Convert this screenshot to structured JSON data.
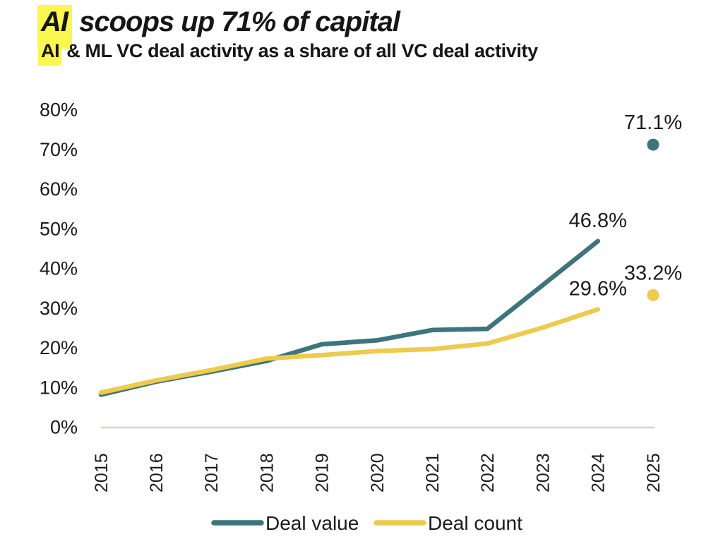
{
  "title": {
    "highlight": "AI",
    "rest": " scoops up 71% of capital"
  },
  "subtitle": {
    "highlight": "AI",
    "rest": " & ML VC deal activity as a share of all VC deal activity"
  },
  "colors": {
    "deal_value": "#3e747b",
    "deal_count": "#eeca4e",
    "title_highlight": "#fbf650",
    "axis_line": "#d8d4cc",
    "text": "#1b1b1b"
  },
  "chart_data": {
    "type": "line",
    "title": "AI scoops up 71% of capital",
    "subtitle": "AI & ML VC deal activity as a share of all VC deal activity",
    "x": [
      2015,
      2016,
      2017,
      2018,
      2019,
      2020,
      2021,
      2022,
      2023,
      2024
    ],
    "series": [
      {
        "name": "Deal value",
        "color_key": "deal_value",
        "values": [
          8.1,
          11.4,
          13.9,
          16.6,
          20.8,
          21.8,
          24.4,
          24.7,
          35.7,
          46.8
        ],
        "end_label": "46.8%",
        "point_2025": {
          "year": 2025,
          "value": 71.1,
          "label": "71.1%"
        }
      },
      {
        "name": "Deal count",
        "color_key": "deal_count",
        "values": [
          8.6,
          11.7,
          14.3,
          17.2,
          18.1,
          19.1,
          19.6,
          21.0,
          25.0,
          29.6
        ],
        "end_label": "29.6%",
        "point_2025": {
          "year": 2025,
          "value": 33.2,
          "label": "33.2%"
        }
      }
    ],
    "ylim": [
      0,
      80
    ],
    "ytick_labels": [
      "0%",
      "10%",
      "20%",
      "30%",
      "40%",
      "50%",
      "60%",
      "70%",
      "80%"
    ],
    "xtick_labels": [
      "2015",
      "2016",
      "2017",
      "2018",
      "2019",
      "2020",
      "2021",
      "2022",
      "2023",
      "2024",
      "2025"
    ],
    "grid": false,
    "legend_position": "bottom"
  },
  "legend": {
    "items": [
      {
        "label": "Deal value",
        "color_key": "deal_value"
      },
      {
        "label": "Deal count",
        "color_key": "deal_count"
      }
    ]
  }
}
